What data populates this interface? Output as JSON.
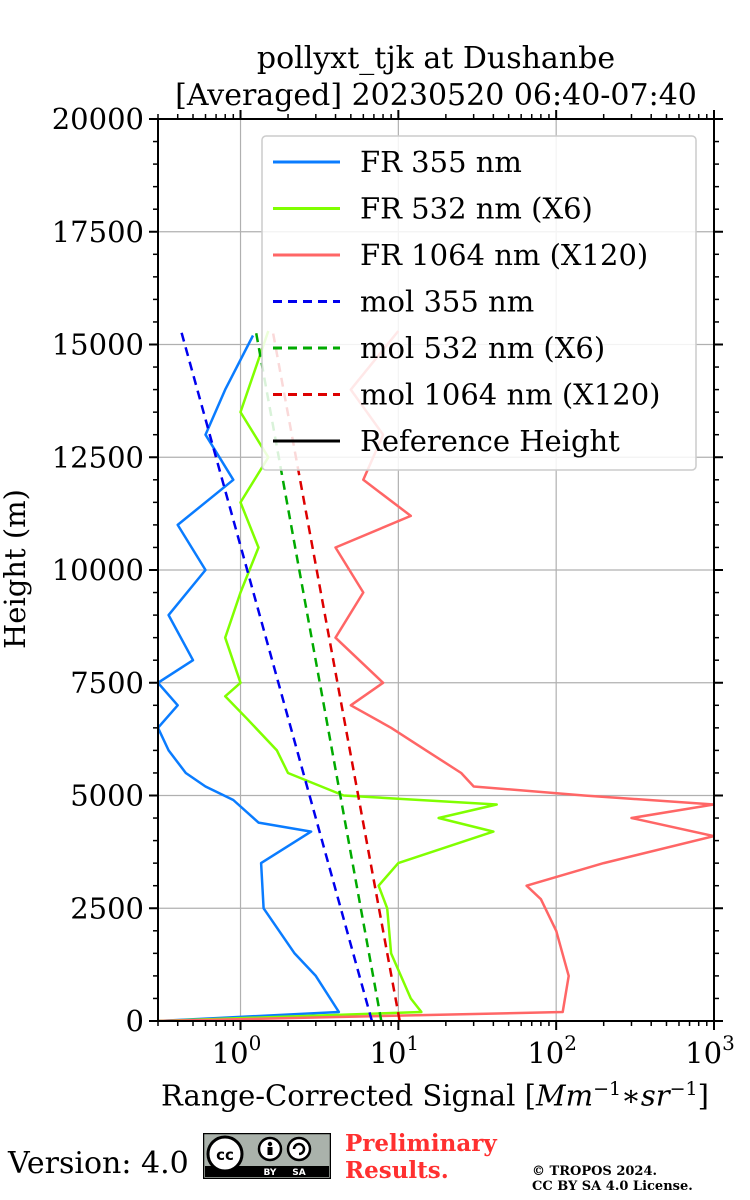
{
  "chart_data": {
    "type": "line",
    "title": "pollyxt_tjk at Dushanbe",
    "subtitle": "[Averaged] 20230520 06:40-07:40",
    "xlabel": "Range-Corrected Signal [",
    "xlabel_unit": "Mm",
    "xlabel_unit_exp": "−1",
    "xlabel_mid": "∗",
    "xlabel_unit2": "sr",
    "xlabel_unit2_exp": "−1",
    "xlabel_end": "]",
    "ylabel": "Height (m)",
    "xscale": "log",
    "xlim": [
      0.3,
      1000
    ],
    "ylim": [
      0,
      20000
    ],
    "yticks": [
      "0",
      "2500",
      "5000",
      "7500",
      "10000",
      "12500",
      "15000",
      "17500",
      "20000"
    ],
    "xticks": [
      {
        "base": "10",
        "exp": "0"
      },
      {
        "base": "10",
        "exp": "1"
      },
      {
        "base": "10",
        "exp": "2"
      },
      {
        "base": "10",
        "exp": "3"
      }
    ],
    "grid": true,
    "legend_position": "top-right",
    "series": [
      {
        "name": "FR 355 nm",
        "color": "#0a7cff",
        "style": "solid",
        "points": [
          [
            0.3,
            0
          ],
          [
            4.2,
            200
          ],
          [
            3.0,
            1000
          ],
          [
            2.2,
            1500
          ],
          [
            1.4,
            2500
          ],
          [
            1.35,
            3500
          ],
          [
            2.8,
            4200
          ],
          [
            1.3,
            4400
          ],
          [
            0.9,
            4900
          ],
          [
            0.6,
            5200
          ],
          [
            0.45,
            5500
          ],
          [
            0.35,
            6000
          ],
          [
            0.3,
            6500
          ],
          [
            0.4,
            7000
          ],
          [
            0.3,
            7500
          ],
          [
            0.5,
            8000
          ],
          [
            0.35,
            9000
          ],
          [
            0.6,
            10000
          ],
          [
            0.4,
            11000
          ],
          [
            0.9,
            12000
          ],
          [
            0.6,
            13000
          ],
          [
            0.8,
            14000
          ],
          [
            1.2,
            15200
          ]
        ]
      },
      {
        "name": "FR 532 nm (X6)",
        "color": "#80ff00",
        "style": "solid",
        "points": [
          [
            0.3,
            0
          ],
          [
            14,
            200
          ],
          [
            12,
            500
          ],
          [
            9,
            1500
          ],
          [
            8.5,
            2500
          ],
          [
            7.5,
            3000
          ],
          [
            10,
            3500
          ],
          [
            40,
            4200
          ],
          [
            18,
            4500
          ],
          [
            42,
            4800
          ],
          [
            4.5,
            5000
          ],
          [
            2.0,
            5500
          ],
          [
            1.7,
            6000
          ],
          [
            1.1,
            6700
          ],
          [
            0.8,
            7200
          ],
          [
            1.0,
            7500
          ],
          [
            0.8,
            8500
          ],
          [
            1.0,
            9500
          ],
          [
            1.3,
            10500
          ],
          [
            1.0,
            11500
          ],
          [
            1.5,
            12500
          ],
          [
            1.0,
            13500
          ],
          [
            1.5,
            15300
          ]
        ]
      },
      {
        "name": "FR 1064 nm (X120)",
        "color": "#ff6666",
        "style": "solid",
        "points": [
          [
            0.3,
            0
          ],
          [
            110,
            200
          ],
          [
            120,
            1000
          ],
          [
            100,
            2000
          ],
          [
            80,
            2700
          ],
          [
            65,
            3000
          ],
          [
            200,
            3500
          ],
          [
            1000,
            4100
          ],
          [
            300,
            4500
          ],
          [
            1000,
            4800
          ],
          [
            150,
            5000
          ],
          [
            30,
            5200
          ],
          [
            25,
            5500
          ],
          [
            15,
            6000
          ],
          [
            9,
            6500
          ],
          [
            5,
            7000
          ],
          [
            8,
            7500
          ],
          [
            4,
            8500
          ],
          [
            6,
            9500
          ],
          [
            4,
            10500
          ],
          [
            12,
            11200
          ],
          [
            6,
            12000
          ],
          [
            8,
            13000
          ],
          [
            5,
            14000
          ],
          [
            10,
            15300
          ]
        ]
      },
      {
        "name": "mol 355 nm",
        "color": "#0000ee",
        "style": "dashed",
        "points": [
          [
            6.8,
            0
          ],
          [
            0.42,
            15300
          ]
        ]
      },
      {
        "name": "mol 532 nm (X6)",
        "color": "#00aa00",
        "style": "dashed",
        "points": [
          [
            7.8,
            0
          ],
          [
            1.25,
            15300
          ]
        ]
      },
      {
        "name": "mol 1064 nm (X120)",
        "color": "#dd0000",
        "style": "dashed",
        "points": [
          [
            10.2,
            0
          ],
          [
            1.6,
            15300
          ]
        ]
      },
      {
        "name": "Reference Height",
        "color": "#000000",
        "style": "solid",
        "points": []
      }
    ]
  },
  "footer": {
    "version": "Version: 4.0",
    "badge_cc": "cc",
    "badge_by": "BY",
    "badge_sa": "SA",
    "prelim_line1": "Preliminary",
    "prelim_line2": "Results.",
    "copyright_line1": "© TROPOS 2024.",
    "copyright_line2": "CC BY SA 4.0 License."
  }
}
